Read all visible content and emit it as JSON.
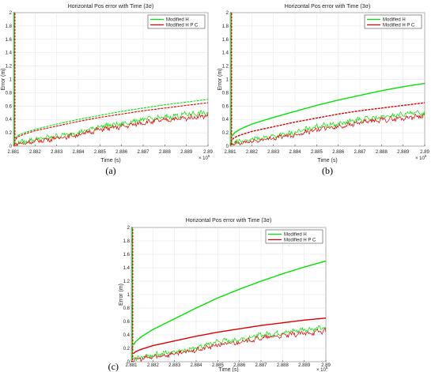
{
  "chart_data": [
    {
      "type": "line",
      "panel_label": "(a)",
      "title": "Horizontal Pos error with Time (3σ)",
      "xlabel": "Time (s)",
      "ylabel": "Error (m)",
      "x_multiplier": "× 10",
      "x_exponent": "5",
      "xlim": [
        2.881,
        2.89
      ],
      "ylim": [
        0,
        2
      ],
      "xticks": [
        "2.881",
        "2.882",
        "2.883",
        "2.884",
        "2.885",
        "2.886",
        "2.887",
        "2.888",
        "2.889",
        "2.89"
      ],
      "yticks": [
        "0",
        "0.2",
        "0.4",
        "0.6",
        "0.8",
        "1",
        "1.2",
        "1.4",
        "1.6",
        "1.8",
        "2"
      ],
      "grid": true,
      "legend_position": "top-right",
      "series": [
        {
          "name": "Modified H",
          "color": "#00e400",
          "kind": "bound",
          "x": [
            2.8811,
            2.8812,
            2.8815,
            2.882,
            2.883,
            2.884,
            2.885,
            2.886,
            2.887,
            2.888,
            2.889,
            2.89
          ],
          "y": [
            0.12,
            0.16,
            0.2,
            0.25,
            0.33,
            0.4,
            0.46,
            0.52,
            0.57,
            0.62,
            0.66,
            0.7
          ]
        },
        {
          "name": "Modified H P C",
          "color": "#e00000",
          "kind": "bound",
          "x": [
            2.8811,
            2.8812,
            2.8815,
            2.882,
            2.883,
            2.884,
            2.885,
            2.886,
            2.887,
            2.888,
            2.889,
            2.89
          ],
          "y": [
            0.1,
            0.14,
            0.18,
            0.23,
            0.3,
            0.37,
            0.43,
            0.48,
            0.53,
            0.57,
            0.61,
            0.65
          ]
        },
        {
          "name": "Modified H",
          "color": "#00e400",
          "kind": "error",
          "x": [
            2.881,
            2.882,
            2.883,
            2.884,
            2.885,
            2.886,
            2.887,
            2.888,
            2.889,
            2.89
          ],
          "y": [
            0.04,
            0.1,
            0.15,
            0.2,
            0.3,
            0.33,
            0.4,
            0.43,
            0.48,
            0.5
          ]
        },
        {
          "name": "Modified H P C",
          "color": "#e00000",
          "kind": "error",
          "x": [
            2.881,
            2.882,
            2.883,
            2.884,
            2.885,
            2.886,
            2.887,
            2.888,
            2.889,
            2.89
          ],
          "y": [
            0.02,
            0.07,
            0.12,
            0.17,
            0.25,
            0.29,
            0.35,
            0.39,
            0.42,
            0.46
          ]
        }
      ]
    },
    {
      "type": "line",
      "panel_label": "(b)",
      "title": "Horizontal Pos error with Time (3σ)",
      "xlabel": "Time (s)",
      "ylabel": "Error (m)",
      "x_multiplier": "× 10",
      "x_exponent": "5",
      "xlim": [
        2.881,
        2.89
      ],
      "ylim": [
        0,
        2
      ],
      "xticks": [
        "2.881",
        "2.882",
        "2.883",
        "2.884",
        "2.885",
        "2.886",
        "2.887",
        "2.888",
        "2.889",
        "2.89"
      ],
      "yticks": [
        "0",
        "0.2",
        "0.4",
        "0.6",
        "0.8",
        "1",
        "1.2",
        "1.4",
        "1.6",
        "1.8",
        "2"
      ],
      "grid": true,
      "legend_position": "top-right",
      "series": [
        {
          "name": "Modified H",
          "color": "#00e400",
          "kind": "bound",
          "x": [
            2.8811,
            2.8812,
            2.8815,
            2.882,
            2.883,
            2.884,
            2.885,
            2.886,
            2.887,
            2.888,
            2.889,
            2.89
          ],
          "y": [
            0.15,
            0.2,
            0.26,
            0.33,
            0.43,
            0.52,
            0.61,
            0.69,
            0.76,
            0.83,
            0.89,
            0.94
          ]
        },
        {
          "name": "Modified H P C",
          "color": "#e00000",
          "kind": "bound",
          "x": [
            2.8811,
            2.8812,
            2.8815,
            2.882,
            2.883,
            2.884,
            2.885,
            2.886,
            2.887,
            2.888,
            2.889,
            2.89
          ],
          "y": [
            0.1,
            0.13,
            0.17,
            0.22,
            0.29,
            0.36,
            0.42,
            0.48,
            0.53,
            0.57,
            0.61,
            0.65
          ]
        },
        {
          "name": "Modified H",
          "color": "#00e400",
          "kind": "error",
          "x": [
            2.881,
            2.882,
            2.883,
            2.884,
            2.885,
            2.886,
            2.887,
            2.888,
            2.889,
            2.89
          ],
          "y": [
            0.04,
            0.1,
            0.15,
            0.2,
            0.3,
            0.33,
            0.4,
            0.43,
            0.48,
            0.5
          ]
        },
        {
          "name": "Modified H P C",
          "color": "#e00000",
          "kind": "error",
          "x": [
            2.881,
            2.882,
            2.883,
            2.884,
            2.885,
            2.886,
            2.887,
            2.888,
            2.889,
            2.89
          ],
          "y": [
            0.02,
            0.07,
            0.12,
            0.17,
            0.25,
            0.29,
            0.35,
            0.39,
            0.42,
            0.46
          ]
        }
      ]
    },
    {
      "type": "line",
      "panel_label": "(c)",
      "title": "Horizontal Pos error with Time (3σ)",
      "xlabel": "Time (s)",
      "ylabel": "Error (m)",
      "x_multiplier": "× 10",
      "x_exponent": "5",
      "xlim": [
        2.881,
        2.89
      ],
      "ylim": [
        0,
        2
      ],
      "xticks": [
        "2.881",
        "2.882",
        "2.883",
        "2.884",
        "2.885",
        "2.886",
        "2.887",
        "2.888",
        "2.889",
        "2.89"
      ],
      "yticks": [
        "0",
        "0.2",
        "0.4",
        "0.6",
        "0.8",
        "1",
        "1.2",
        "1.4",
        "1.6",
        "1.8",
        "2"
      ],
      "grid": true,
      "legend_position": "top-right",
      "series": [
        {
          "name": "Modified H",
          "color": "#00e400",
          "kind": "bound",
          "x": [
            2.8811,
            2.8812,
            2.8815,
            2.882,
            2.883,
            2.884,
            2.885,
            2.886,
            2.887,
            2.888,
            2.889,
            2.89
          ],
          "y": [
            0.25,
            0.3,
            0.38,
            0.48,
            0.64,
            0.8,
            0.95,
            1.08,
            1.2,
            1.31,
            1.41,
            1.5
          ]
        },
        {
          "name": "Modified H P C",
          "color": "#e00000",
          "kind": "bound",
          "x": [
            2.8811,
            2.8812,
            2.8815,
            2.882,
            2.883,
            2.884,
            2.885,
            2.886,
            2.887,
            2.888,
            2.889,
            2.89
          ],
          "y": [
            0.12,
            0.15,
            0.19,
            0.24,
            0.31,
            0.38,
            0.44,
            0.49,
            0.54,
            0.58,
            0.62,
            0.65
          ]
        },
        {
          "name": "Modified H",
          "color": "#00e400",
          "kind": "error",
          "x": [
            2.881,
            2.882,
            2.883,
            2.884,
            2.885,
            2.886,
            2.887,
            2.888,
            2.889,
            2.89
          ],
          "y": [
            0.04,
            0.1,
            0.15,
            0.2,
            0.3,
            0.33,
            0.4,
            0.43,
            0.48,
            0.5
          ]
        },
        {
          "name": "Modified H P C",
          "color": "#e00000",
          "kind": "error",
          "x": [
            2.881,
            2.882,
            2.883,
            2.884,
            2.885,
            2.886,
            2.887,
            2.888,
            2.889,
            2.89
          ],
          "y": [
            0.02,
            0.07,
            0.12,
            0.17,
            0.25,
            0.29,
            0.35,
            0.39,
            0.42,
            0.46
          ]
        }
      ]
    }
  ]
}
